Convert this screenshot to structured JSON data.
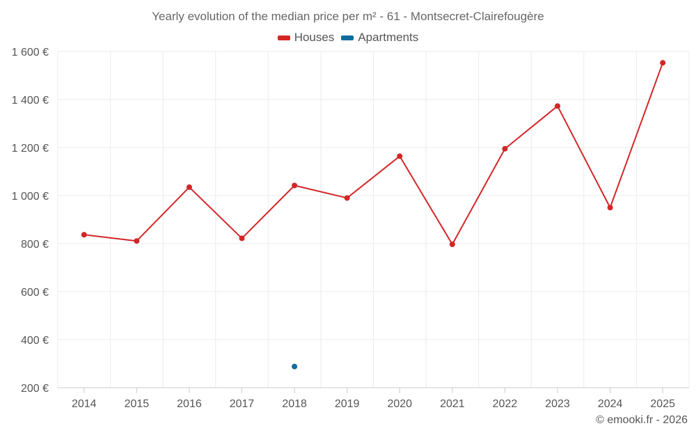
{
  "chart_data": {
    "type": "line",
    "title": "Yearly evolution of the median price per m² - 61 - Montsecret-Clairefougère",
    "xlabel": "",
    "ylabel": "",
    "categories": [
      "2014",
      "2015",
      "2016",
      "2017",
      "2018",
      "2019",
      "2020",
      "2021",
      "2022",
      "2023",
      "2024",
      "2025"
    ],
    "ylim": [
      200,
      1600
    ],
    "yticks": [
      200,
      400,
      600,
      800,
      1000,
      1200,
      1400,
      1600
    ],
    "ytick_labels": [
      "200 €",
      "400 €",
      "600 €",
      "800 €",
      "1 000 €",
      "1 200 €",
      "1 400 €",
      "1 600 €"
    ],
    "grid": true,
    "legend_position": "top-center",
    "series": [
      {
        "name": "Houses",
        "color": "#d32627",
        "values": [
          837,
          811,
          1035,
          822,
          1042,
          990,
          1164,
          797,
          1195,
          1373,
          950,
          1553
        ]
      },
      {
        "name": "Apartments",
        "color": "#0d6c9e",
        "values": [
          null,
          null,
          null,
          null,
          288,
          null,
          null,
          null,
          null,
          null,
          null,
          null
        ]
      }
    ]
  },
  "credit": "© emooki.fr - 2026"
}
